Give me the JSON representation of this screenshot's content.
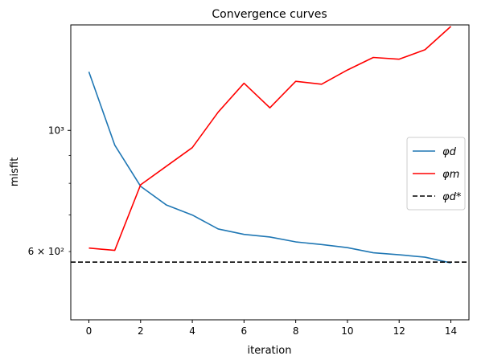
{
  "chart_data": {
    "type": "line",
    "title": "Convergence curves",
    "xlabel": "iteration",
    "ylabel": "misfit",
    "xlim": [
      -0.7,
      14.7
    ],
    "ylim": [
      450,
      1560
    ],
    "yscale": "log",
    "x_ticks": [
      0,
      2,
      4,
      6,
      8,
      10,
      12,
      14
    ],
    "x_tick_labels": [
      "0",
      "2",
      "4",
      "6",
      "8",
      "10",
      "12",
      "14"
    ],
    "y_major_ticks": [
      1000
    ],
    "y_major_labels": [
      "10³"
    ],
    "y_minor_ticks": [
      600,
      700,
      800,
      900
    ],
    "y_minor_labels": [
      "6 × 10²",
      "",
      "",
      ""
    ],
    "grid": false,
    "legend_position": "center-right",
    "series": [
      {
        "name": "φd",
        "color": "#1f77b4",
        "dash": "solid",
        "x": [
          0,
          1,
          2,
          3,
          4,
          5,
          6,
          7,
          8,
          9,
          10,
          11,
          12,
          13,
          14
        ],
        "y": [
          1280,
          940,
          790,
          730,
          700,
          660,
          645,
          638,
          625,
          618,
          610,
          597,
          592,
          586,
          572
        ]
      },
      {
        "name": "φm",
        "color": "#ff0000",
        "dash": "solid",
        "x": [
          0,
          1,
          2,
          3,
          4,
          5,
          6,
          7,
          8,
          9,
          10,
          11,
          12,
          13,
          14
        ],
        "y": [
          609,
          603,
          795,
          860,
          930,
          1080,
          1220,
          1100,
          1230,
          1215,
          1290,
          1360,
          1350,
          1405,
          1550
        ]
      },
      {
        "name": "φd*",
        "color": "#000000",
        "dash": "dashed",
        "x": [
          -0.7,
          14.7
        ],
        "y": [
          574,
          574
        ]
      }
    ]
  }
}
